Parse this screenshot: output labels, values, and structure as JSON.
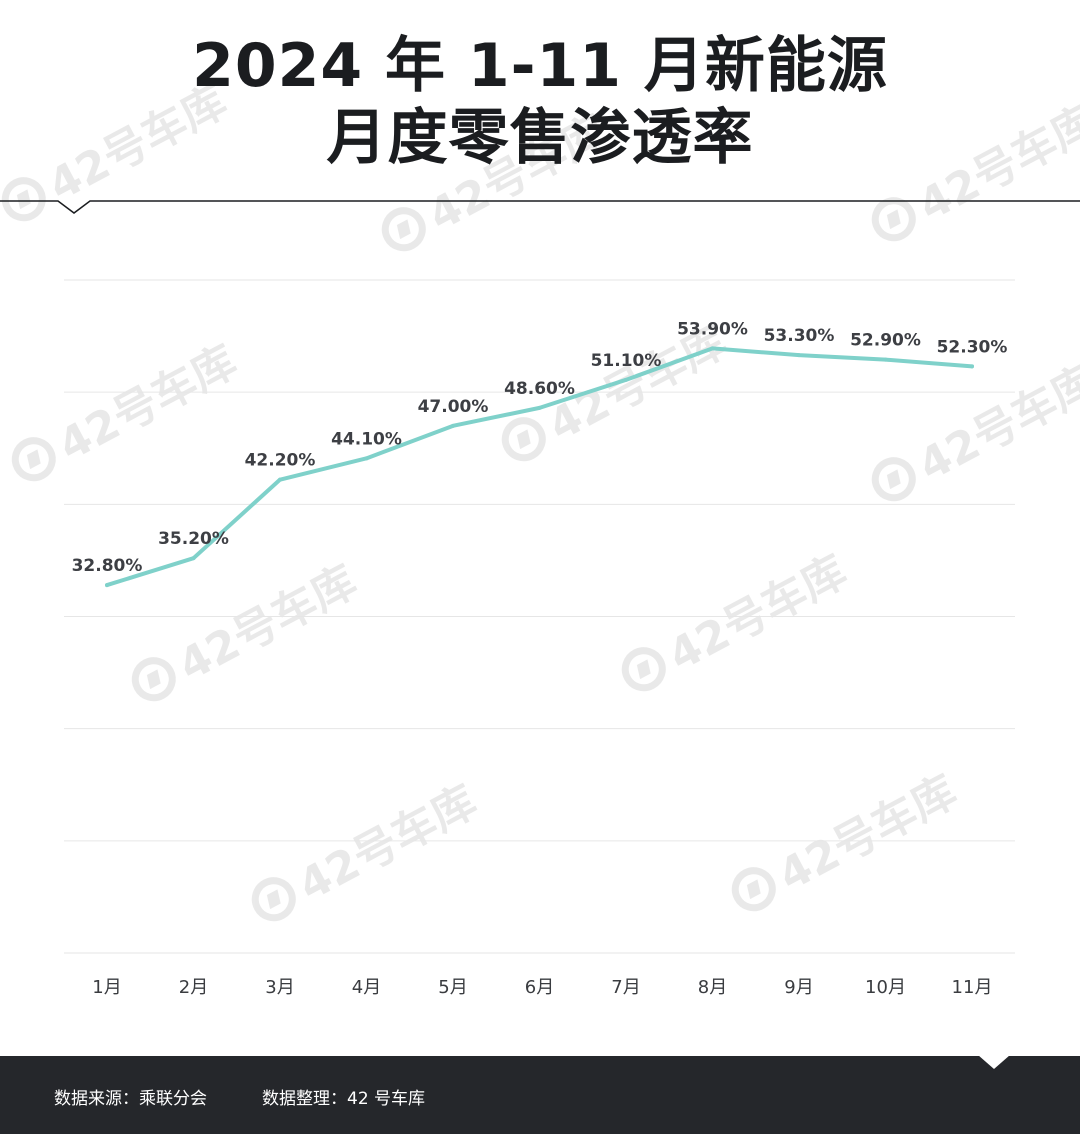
{
  "title": {
    "line1": "2024 年 1-11 月新能源",
    "line2": "月度零售渗透率"
  },
  "watermark_text": "42号车库",
  "colors": {
    "line": "#7fd1ca",
    "label": "#3d3f44",
    "grid": "#e6e6e6",
    "footer_bg": "#25272b"
  },
  "chart_data": {
    "type": "line",
    "categories": [
      "1月",
      "2月",
      "3月",
      "4月",
      "5月",
      "6月",
      "7月",
      "8月",
      "9月",
      "10月",
      "11月"
    ],
    "series": [
      {
        "values": [
          32.8,
          35.2,
          42.2,
          44.1,
          47.0,
          48.6,
          51.1,
          53.9,
          53.3,
          52.9,
          52.3
        ],
        "labels": [
          "32.80%",
          "35.20%",
          "42.20%",
          "44.10%",
          "47.00%",
          "48.60%",
          "51.10%",
          "53.90%",
          "53.30%",
          "52.90%",
          "52.30%"
        ]
      }
    ],
    "ylim": [
      0,
      60
    ],
    "grid": true,
    "xlabel": "",
    "ylabel": ""
  },
  "footer": {
    "source": "数据来源：乘联分会",
    "compiled": "数据整理：42 号车库"
  }
}
